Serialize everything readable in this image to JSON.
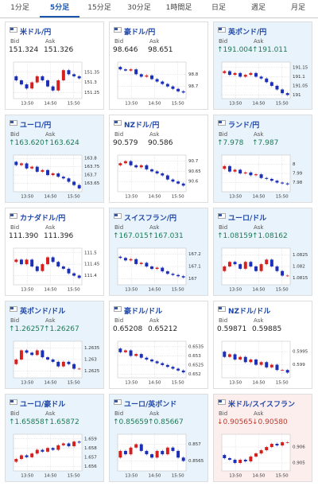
{
  "tabs": [
    "1分足",
    "5分足",
    "15分足",
    "30分足",
    "1時間足",
    "日足",
    "週足",
    "月足"
  ],
  "selected_tab": 1,
  "bid_label": "Bid",
  "ask_label": "Ask",
  "x_labels": [
    "13:50",
    "14:50",
    "15:50"
  ],
  "cards": [
    {
      "name": "米ドル/円",
      "bid": "151.324",
      "ask": "151.326",
      "trend": null,
      "yticks": [
        151.35,
        151.3,
        151.25
      ],
      "ylim": [
        151.22,
        151.4
      ],
      "closes": [
        151.33,
        151.31,
        151.29,
        151.27,
        151.3,
        151.33,
        151.31,
        151.28,
        151.26,
        151.31,
        151.36,
        151.34,
        151.33,
        151.32
      ]
    },
    {
      "name": "豪ドル/円",
      "bid": "98.646",
      "ask": "98.651",
      "trend": null,
      "yticks": [
        98.8,
        98.7
      ],
      "ylim": [
        98.6,
        98.9
      ],
      "closes": [
        98.86,
        98.84,
        98.83,
        98.84,
        98.8,
        98.78,
        98.79,
        98.76,
        98.74,
        98.72,
        98.7,
        98.68,
        98.66,
        98.65
      ]
    },
    {
      "name": "英ポンド/円",
      "bid": "191.004",
      "ask": "191.011",
      "trend": "up",
      "yticks": [
        191.15,
        191.1,
        191.05,
        191
      ],
      "ylim": [
        190.98,
        191.18
      ],
      "closes": [
        191.12,
        191.13,
        191.11,
        191.12,
        191.1,
        191.11,
        191.12,
        191.1,
        191.09,
        191.07,
        191.05,
        191.03,
        191.01,
        191
      ]
    },
    {
      "name": "ユーロ/円",
      "bid": "163.620",
      "ask": "163.624",
      "trend": "up",
      "yticks": [
        163.8,
        163.75,
        163.7,
        163.65
      ],
      "ylim": [
        163.6,
        163.82
      ],
      "closes": [
        163.78,
        163.76,
        163.77,
        163.74,
        163.75,
        163.72,
        163.73,
        163.7,
        163.71,
        163.69,
        163.68,
        163.66,
        163.64,
        163.62
      ]
    },
    {
      "name": "NZドル/円",
      "bid": "90.579",
      "ask": "90.586",
      "trend": null,
      "yticks": [
        90.7,
        90.65,
        90.6
      ],
      "ylim": [
        90.55,
        90.73
      ],
      "closes": [
        90.68,
        90.69,
        90.7,
        90.68,
        90.67,
        90.68,
        90.66,
        90.65,
        90.64,
        90.63,
        90.61,
        90.6,
        90.59,
        90.58
      ]
    },
    {
      "name": "ランド/円",
      "bid": "7.978",
      "ask": "7.987",
      "trend": "up",
      "yticks": [
        8,
        7.99,
        7.98
      ],
      "ylim": [
        7.97,
        8.01
      ],
      "closes": [
        7.995,
        7.998,
        7.992,
        7.994,
        7.99,
        7.991,
        7.988,
        7.989,
        7.985,
        7.984,
        7.982,
        7.98,
        7.979,
        7.978
      ]
    },
    {
      "name": "カナダドル/円",
      "bid": "111.390",
      "ask": "111.396",
      "trend": null,
      "yticks": [
        111.5,
        111.45,
        111.4
      ],
      "ylim": [
        111.36,
        111.52
      ],
      "closes": [
        111.46,
        111.47,
        111.45,
        111.47,
        111.44,
        111.42,
        111.45,
        111.48,
        111.46,
        111.44,
        111.43,
        111.41,
        111.4,
        111.39
      ]
    },
    {
      "name": "スイスフラン/円",
      "bid": "167.015",
      "ask": "167.031",
      "trend": "up",
      "yticks": [
        167.2,
        167.1,
        167
      ],
      "ylim": [
        166.95,
        167.25
      ],
      "closes": [
        167.18,
        167.17,
        167.15,
        167.16,
        167.12,
        167.13,
        167.1,
        167.08,
        167.09,
        167.06,
        167.04,
        167.03,
        167.02,
        167.01
      ]
    },
    {
      "name": "ユーロ/ドル",
      "bid": "1.08159",
      "ask": "1.08162",
      "trend": "up",
      "yticks": [
        1.0825,
        1.082,
        1.0815
      ],
      "ylim": [
        1.0812,
        1.0828
      ],
      "closes": [
        1.0818,
        1.082,
        1.0822,
        1.0821,
        1.0819,
        1.0822,
        1.082,
        1.0818,
        1.0821,
        1.0823,
        1.082,
        1.0818,
        1.0816,
        1.0816
      ]
    },
    {
      "name": "英ポンド/ドル",
      "bid": "1.26257",
      "ask": "1.26267",
      "trend": "up",
      "yticks": [
        1.2635,
        1.263,
        1.2625
      ],
      "ylim": [
        1.2622,
        1.2638
      ],
      "closes": [
        1.2628,
        1.263,
        1.2634,
        1.2633,
        1.2632,
        1.2634,
        1.2631,
        1.263,
        1.2629,
        1.2627,
        1.2629,
        1.2628,
        1.2626,
        1.2626
      ]
    },
    {
      "name": "豪ドル/ドル",
      "bid": "0.65208",
      "ask": "0.65212",
      "trend": null,
      "yticks": [
        0.6535,
        0.653,
        0.6525,
        0.652
      ],
      "ylim": [
        0.6518,
        0.6538
      ],
      "closes": [
        0.6534,
        0.6532,
        0.6533,
        0.653,
        0.6531,
        0.6529,
        0.6528,
        0.6527,
        0.6526,
        0.6525,
        0.6524,
        0.6523,
        0.6522,
        0.6521
      ]
    },
    {
      "name": "NZドル/ドル",
      "bid": "0.59871",
      "ask": "0.59885",
      "trend": null,
      "yticks": [
        0.5995,
        0.599
      ],
      "ylim": [
        0.5985,
        0.5999
      ],
      "closes": [
        0.5995,
        0.5993,
        0.5994,
        0.5992,
        0.5993,
        0.5991,
        0.5992,
        0.599,
        0.5991,
        0.5989,
        0.599,
        0.5988,
        0.5988,
        0.5987
      ]
    },
    {
      "name": "ユーロ/豪ドル",
      "bid": "1.65858",
      "ask": "1.65872",
      "trend": "up",
      "yticks": [
        1.659,
        1.658,
        1.657,
        1.656
      ],
      "ylim": [
        1.6555,
        1.6595
      ],
      "closes": [
        1.6565,
        1.6568,
        1.6572,
        1.657,
        1.6574,
        1.6578,
        1.6576,
        1.658,
        1.6578,
        1.6583,
        1.6585,
        1.6582,
        1.6587,
        1.6586
      ]
    },
    {
      "name": "ユーロ/英ポンド",
      "bid": "0.85659",
      "ask": "0.85667",
      "trend": "up",
      "yticks": [
        0.857,
        0.8565
      ],
      "ylim": [
        0.8562,
        0.8573
      ],
      "closes": [
        0.8566,
        0.8568,
        0.8567,
        0.8569,
        0.857,
        0.8568,
        0.8567,
        0.8566,
        0.8568,
        0.8567,
        0.8569,
        0.8568,
        0.8566,
        0.8565
      ]
    },
    {
      "name": "米ドル/スイスフラン",
      "bid": "0.90565",
      "ask": "0.90580",
      "trend": "down",
      "yticks": [
        0.906,
        0.905
      ],
      "ylim": [
        0.9045,
        0.9068
      ],
      "closes": [
        0.9055,
        0.9053,
        0.9052,
        0.905,
        0.9052,
        0.9051,
        0.9054,
        0.9056,
        0.9058,
        0.906,
        0.9062,
        0.9061,
        0.9063,
        0.9063
      ]
    }
  ]
}
